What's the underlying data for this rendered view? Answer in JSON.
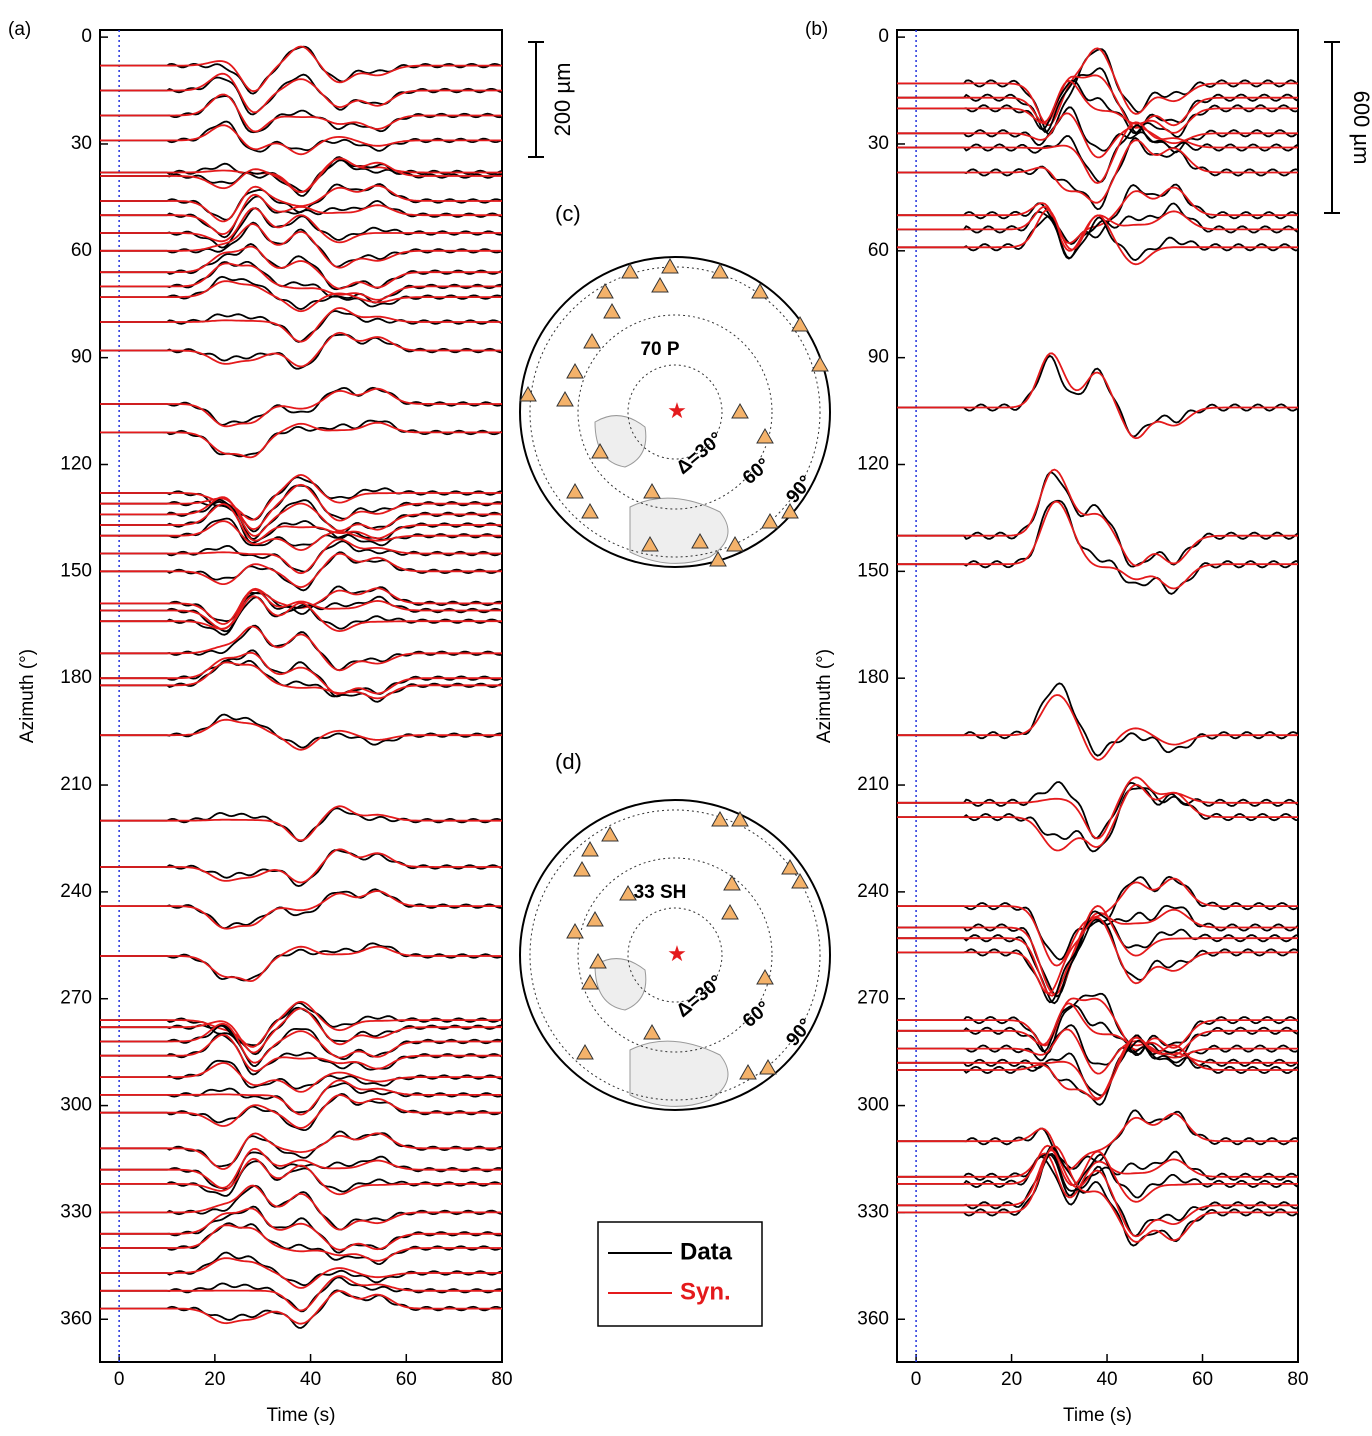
{
  "chart_data": [
    {
      "type": "line",
      "panel_label": "(a)",
      "xlabel": "Time (s)",
      "ylabel": "Azimuth (°)",
      "xlim": [
        -4,
        80
      ],
      "xticks": [
        0,
        20,
        40,
        60,
        80
      ],
      "ylim": [
        -2,
        372
      ],
      "yticks": [
        0,
        30,
        60,
        90,
        120,
        150,
        180,
        210,
        240,
        270,
        300,
        330,
        360
      ],
      "y_inverted": true,
      "reference_time": 0,
      "scale_bar": 200,
      "scale_label": "200 µm",
      "trace_azimuths": [
        8,
        15,
        22,
        29,
        38,
        39,
        46,
        50,
        55,
        60,
        66,
        70,
        73,
        80,
        88,
        103,
        111,
        128,
        131,
        134,
        137,
        140,
        145,
        150,
        159,
        161,
        164,
        173,
        180,
        182,
        196,
        220,
        233,
        244,
        258,
        276,
        278,
        282,
        286,
        292,
        297,
        302,
        312,
        318,
        322,
        330,
        336,
        340,
        347,
        352,
        357
      ]
    },
    {
      "type": "line",
      "panel_label": "(b)",
      "xlabel": "Time (s)",
      "ylabel": "Azimuth (°)",
      "xlim": [
        -4,
        80
      ],
      "xticks": [
        0,
        20,
        40,
        60,
        80
      ],
      "ylim": [
        -2,
        372
      ],
      "yticks": [
        0,
        30,
        60,
        90,
        120,
        150,
        180,
        210,
        240,
        270,
        300,
        330,
        360
      ],
      "y_inverted": true,
      "reference_time": 0,
      "scale_bar": 600,
      "scale_label": "600 µm",
      "trace_azimuths": [
        13,
        17,
        20,
        27,
        31,
        38,
        50,
        54,
        59,
        104,
        140,
        148,
        196,
        215,
        219,
        244,
        250,
        253,
        257,
        276,
        279,
        284,
        288,
        290,
        310,
        320,
        322,
        328,
        330
      ]
    }
  ],
  "legend": [
    {
      "name": "Data",
      "color": "#000000"
    },
    {
      "name": "Syn.",
      "color": "#e41a1c"
    }
  ],
  "maps": [
    {
      "panel_label": "(c)",
      "station_label": "70 P",
      "rings": [
        "Δ=30°",
        "60°",
        "90°"
      ]
    },
    {
      "panel_label": "(d)",
      "station_label": "33 SH",
      "rings": [
        "Δ=30°",
        "60°",
        "90°"
      ]
    }
  ]
}
